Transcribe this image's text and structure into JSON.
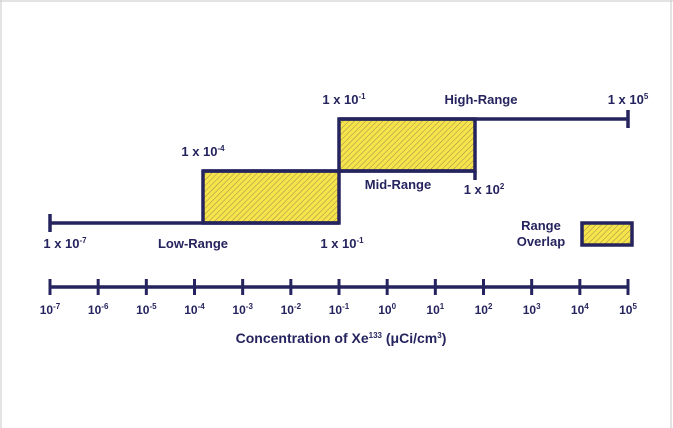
{
  "colors": {
    "navy": "#25245e",
    "fill": "#f7e44a",
    "hatch": "#8c8250",
    "border": "#c9c9c9"
  },
  "ranges": {
    "low": {
      "name": "Low-Range",
      "start_label": "1 x 10",
      "start_exp": "-7",
      "end_label": "1 x 10",
      "end_exp": "-1"
    },
    "mid": {
      "name": "Mid-Range",
      "start_label": "1 x 10",
      "start_exp": "-4",
      "end_label": "1 x 10",
      "end_exp": "2"
    },
    "high": {
      "name": "High-Range",
      "start_label": "1 x 10",
      "start_exp": "-1",
      "end_label": "1 x 10",
      "end_exp": "5"
    }
  },
  "legend": {
    "line1": "Range",
    "line2": "Overlap"
  },
  "axis": {
    "tick_base": "10",
    "tick_exponents": [
      "-7",
      "-6",
      "-5",
      "-4",
      "-3",
      "-2",
      "-1",
      "0",
      "1",
      "2",
      "3",
      "4",
      "5"
    ],
    "title_prefix": "Concentration of Xe",
    "title_isotope": "133",
    "title_unit": " (μCi/cm",
    "title_unit_exp": "3",
    "title_close": ")"
  }
}
